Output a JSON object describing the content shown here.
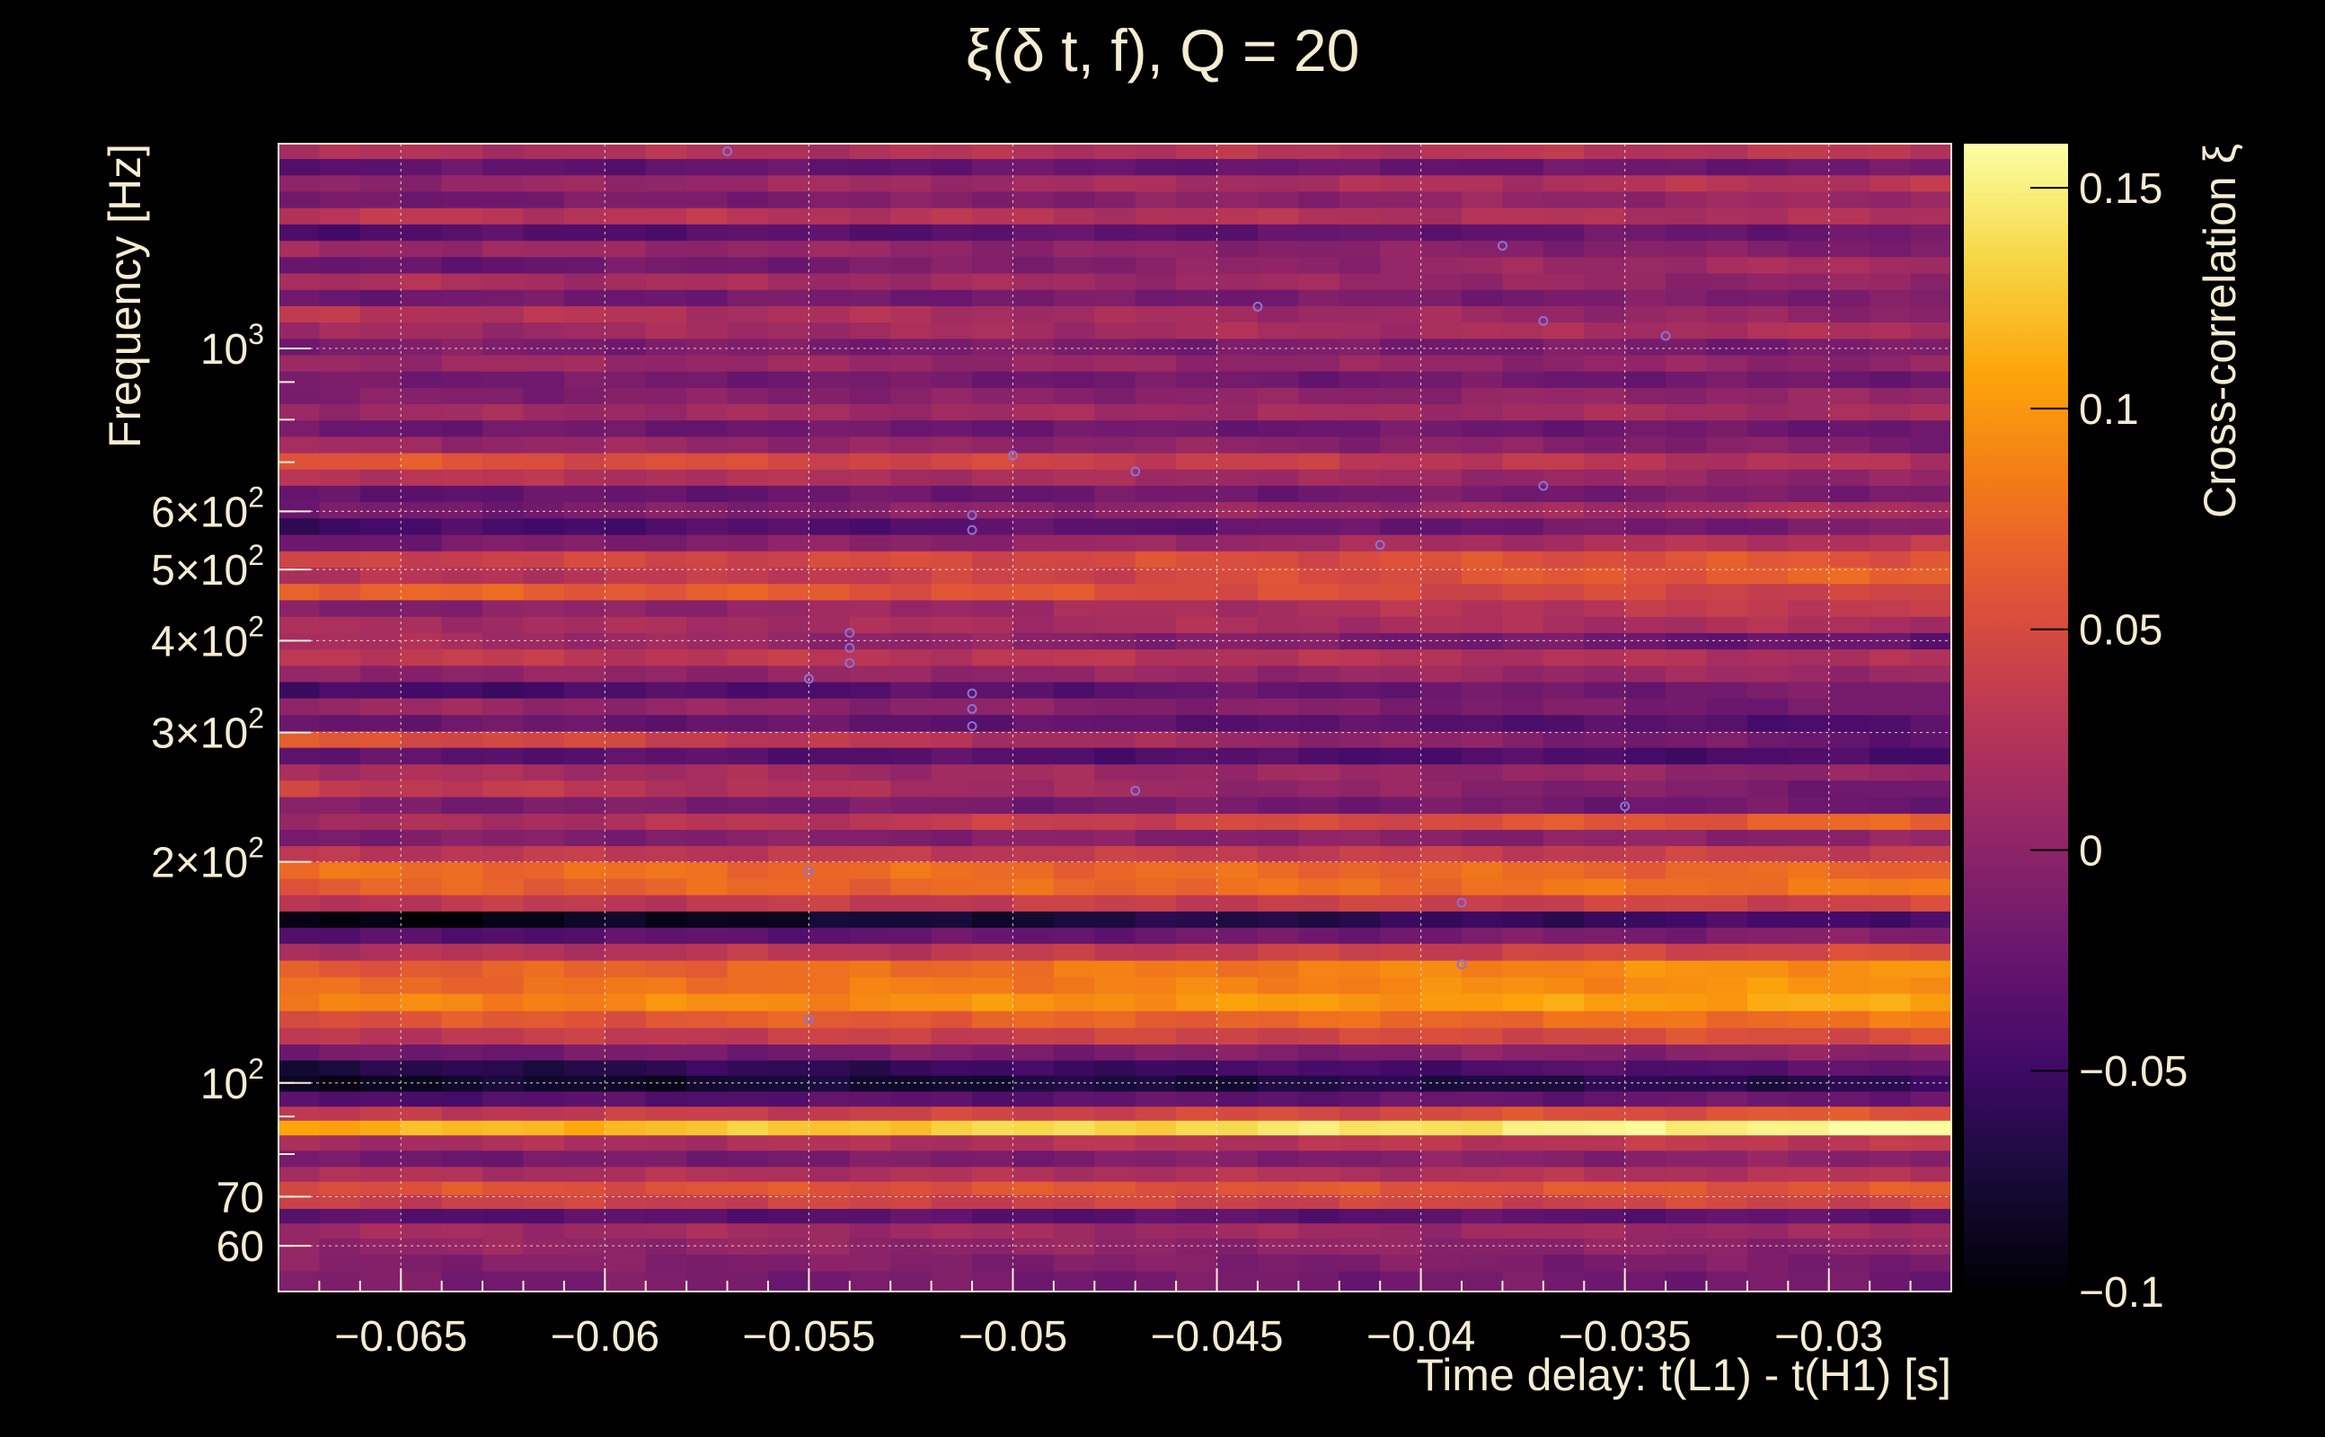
{
  "chart_data": {
    "type": "heatmap",
    "title": "ξ(δ t, f), Q = 20",
    "xlabel": "Time delay: t(L1) - t(H1) [s]",
    "ylabel": "Frequency [Hz]",
    "colorbar_label": "Cross-correlation ξ",
    "x_range": [
      -0.068,
      -0.027
    ],
    "y_range": [
      52,
      1900
    ],
    "y_scale": "log",
    "color_range": [
      -0.1,
      0.16
    ],
    "colormap": "inferno",
    "grid": true,
    "x_ticks": [
      {
        "value": -0.065,
        "label": "−0.065"
      },
      {
        "value": -0.06,
        "label": "−0.06"
      },
      {
        "value": -0.055,
        "label": "−0.055"
      },
      {
        "value": -0.05,
        "label": "−0.05"
      },
      {
        "value": -0.045,
        "label": "−0.045"
      },
      {
        "value": -0.04,
        "label": "−0.04"
      },
      {
        "value": -0.035,
        "label": "−0.035"
      },
      {
        "value": -0.03,
        "label": "−0.03"
      }
    ],
    "y_ticks": [
      {
        "value": 60,
        "label": "60",
        "sup": ""
      },
      {
        "value": 70,
        "label": "70",
        "sup": ""
      },
      {
        "value": 100,
        "label": "10",
        "sup": "2"
      },
      {
        "value": 200,
        "label": "2×10",
        "sup": "2"
      },
      {
        "value": 300,
        "label": "3×10",
        "sup": "2"
      },
      {
        "value": 400,
        "label": "4×10",
        "sup": "2"
      },
      {
        "value": 500,
        "label": "5×10",
        "sup": "2"
      },
      {
        "value": 600,
        "label": "6×10",
        "sup": "2"
      },
      {
        "value": 1000,
        "label": "10",
        "sup": "3"
      }
    ],
    "colorbar_ticks": [
      {
        "value": -0.1,
        "label": "−0.1"
      },
      {
        "value": -0.05,
        "label": "−0.05"
      },
      {
        "value": 0,
        "label": "0"
      },
      {
        "value": 0.05,
        "label": "0.05"
      },
      {
        "value": 0.1,
        "label": "0.1"
      },
      {
        "value": 0.15,
        "label": "0.15"
      }
    ],
    "bands": [
      {
        "f": 54,
        "left": -0.012,
        "right": -0.018
      },
      {
        "f": 57,
        "left": -0.005,
        "right": -0.012
      },
      {
        "f": 60,
        "left": 0.005,
        "right": -0.002
      },
      {
        "f": 63,
        "left": 0.012,
        "right": 0.01
      },
      {
        "f": 66,
        "left": -0.035,
        "right": -0.03
      },
      {
        "f": 69,
        "left": 0.04,
        "right": 0.045
      },
      {
        "f": 72,
        "left": 0.055,
        "right": 0.06
      },
      {
        "f": 75,
        "left": 0.02,
        "right": 0.025
      },
      {
        "f": 79,
        "left": -0.02,
        "right": 0.0
      },
      {
        "f": 83,
        "left": 0.015,
        "right": 0.035
      },
      {
        "f": 87,
        "left": 0.11,
        "right": 0.16
      },
      {
        "f": 91,
        "left": 0.03,
        "right": 0.06
      },
      {
        "f": 95,
        "left": -0.04,
        "right": -0.02
      },
      {
        "f": 100,
        "left": -0.085,
        "right": -0.06
      },
      {
        "f": 105,
        "left": -0.07,
        "right": -0.03
      },
      {
        "f": 110,
        "left": -0.02,
        "right": 0.0
      },
      {
        "f": 116,
        "left": 0.03,
        "right": 0.055
      },
      {
        "f": 122,
        "left": 0.055,
        "right": 0.08
      },
      {
        "f": 129,
        "left": 0.085,
        "right": 0.11
      },
      {
        "f": 136,
        "left": 0.07,
        "right": 0.1
      },
      {
        "f": 143,
        "left": 0.06,
        "right": 0.1
      },
      {
        "f": 151,
        "left": 0.02,
        "right": 0.05
      },
      {
        "f": 159,
        "left": -0.04,
        "right": -0.005
      },
      {
        "f": 167,
        "left": -0.1,
        "right": -0.04
      },
      {
        "f": 176,
        "left": 0.03,
        "right": 0.045
      },
      {
        "f": 185,
        "left": 0.065,
        "right": 0.08
      },
      {
        "f": 195,
        "left": 0.075,
        "right": 0.07
      },
      {
        "f": 205,
        "left": 0.03,
        "right": 0.04
      },
      {
        "f": 216,
        "left": -0.01,
        "right": 0.0
      },
      {
        "f": 227,
        "left": 0.01,
        "right": 0.07
      },
      {
        "f": 239,
        "left": -0.01,
        "right": -0.02
      },
      {
        "f": 252,
        "left": 0.04,
        "right": -0.02
      },
      {
        "f": 265,
        "left": 0.02,
        "right": 0.0
      },
      {
        "f": 279,
        "left": -0.03,
        "right": -0.045
      },
      {
        "f": 294,
        "left": 0.06,
        "right": -0.03
      },
      {
        "f": 309,
        "left": -0.02,
        "right": -0.04
      },
      {
        "f": 326,
        "left": 0.01,
        "right": -0.02
      },
      {
        "f": 343,
        "left": -0.05,
        "right": -0.01
      },
      {
        "f": 361,
        "left": 0.0,
        "right": 0.01
      },
      {
        "f": 380,
        "left": 0.035,
        "right": 0.02
      },
      {
        "f": 400,
        "left": 0.02,
        "right": -0.03
      },
      {
        "f": 421,
        "left": 0.015,
        "right": 0.02
      },
      {
        "f": 443,
        "left": -0.01,
        "right": 0.04
      },
      {
        "f": 467,
        "left": 0.07,
        "right": 0.04
      },
      {
        "f": 491,
        "left": 0.02,
        "right": 0.07
      },
      {
        "f": 517,
        "left": 0.04,
        "right": 0.06
      },
      {
        "f": 544,
        "left": -0.02,
        "right": 0.03
      },
      {
        "f": 573,
        "left": -0.05,
        "right": -0.01
      },
      {
        "f": 603,
        "left": -0.02,
        "right": 0.02
      },
      {
        "f": 635,
        "left": -0.03,
        "right": -0.01
      },
      {
        "f": 668,
        "left": 0.03,
        "right": 0.0
      },
      {
        "f": 703,
        "left": 0.06,
        "right": 0.02
      },
      {
        "f": 740,
        "left": 0.01,
        "right": -0.01
      },
      {
        "f": 779,
        "left": -0.02,
        "right": -0.02
      },
      {
        "f": 820,
        "left": 0.01,
        "right": 0.015
      },
      {
        "f": 863,
        "left": -0.01,
        "right": 0.005
      },
      {
        "f": 908,
        "left": -0.015,
        "right": -0.02
      },
      {
        "f": 956,
        "left": 0.01,
        "right": 0.0
      },
      {
        "f": 1006,
        "left": -0.01,
        "right": -0.015
      },
      {
        "f": 1059,
        "left": 0.01,
        "right": 0.02
      },
      {
        "f": 1115,
        "left": 0.03,
        "right": 0.0
      },
      {
        "f": 1173,
        "left": -0.02,
        "right": -0.01
      },
      {
        "f": 1235,
        "left": 0.02,
        "right": 0.0
      },
      {
        "f": 1300,
        "left": -0.03,
        "right": 0.02
      },
      {
        "f": 1368,
        "left": 0.01,
        "right": -0.01
      },
      {
        "f": 1440,
        "left": -0.04,
        "right": -0.02
      },
      {
        "f": 1516,
        "left": 0.03,
        "right": 0.02
      },
      {
        "f": 1596,
        "left": -0.02,
        "right": 0.01
      },
      {
        "f": 1680,
        "left": 0.0,
        "right": 0.03
      },
      {
        "f": 1768,
        "left": -0.03,
        "right": -0.02
      },
      {
        "f": 1861,
        "left": 0.02,
        "right": 0.03
      }
    ],
    "markers": [
      {
        "x": -0.057,
        "y": 1855
      },
      {
        "x": -0.038,
        "y": 1380
      },
      {
        "x": -0.044,
        "y": 1140
      },
      {
        "x": -0.037,
        "y": 1090
      },
      {
        "x": -0.034,
        "y": 1040
      },
      {
        "x": -0.05,
        "y": 715
      },
      {
        "x": -0.047,
        "y": 680
      },
      {
        "x": -0.037,
        "y": 650
      },
      {
        "x": -0.051,
        "y": 593
      },
      {
        "x": -0.051,
        "y": 566
      },
      {
        "x": -0.041,
        "y": 540
      },
      {
        "x": -0.054,
        "y": 410
      },
      {
        "x": -0.054,
        "y": 391
      },
      {
        "x": -0.054,
        "y": 373
      },
      {
        "x": -0.055,
        "y": 355
      },
      {
        "x": -0.051,
        "y": 339
      },
      {
        "x": -0.051,
        "y": 323
      },
      {
        "x": -0.051,
        "y": 306
      },
      {
        "x": -0.047,
        "y": 250
      },
      {
        "x": -0.035,
        "y": 238
      },
      {
        "x": -0.055,
        "y": 194
      },
      {
        "x": -0.039,
        "y": 176
      },
      {
        "x": -0.039,
        "y": 145
      },
      {
        "x": -0.055,
        "y": 122
      }
    ]
  }
}
